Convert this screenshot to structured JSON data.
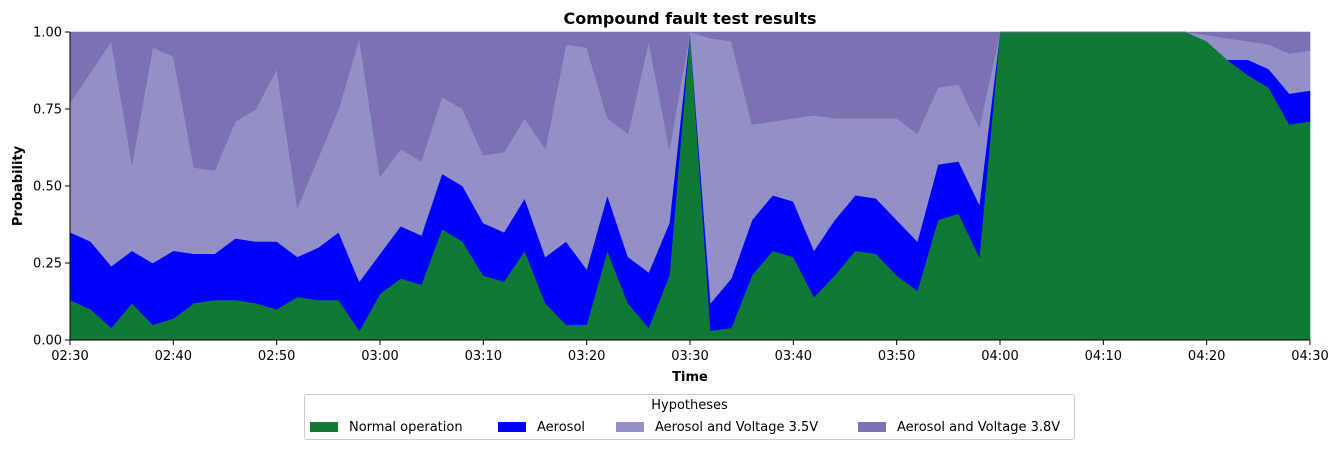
{
  "chart_data": {
    "type": "area",
    "stacked": true,
    "title": "Compound fault test results",
    "xlabel": "Time",
    "ylabel": "Probability",
    "ylim": [
      0,
      1
    ],
    "yticks": [
      "0.00",
      "0.25",
      "0.50",
      "0.75",
      "1.00"
    ],
    "xticks": [
      "02:30",
      "02:40",
      "02:50",
      "03:00",
      "03:10",
      "03:20",
      "03:30",
      "03:40",
      "03:50",
      "04:00",
      "04:10",
      "04:20",
      "04:30"
    ],
    "legend_title": "Hypotheses",
    "legend_position": "bottom-center",
    "x": [
      "02:30",
      "02:32",
      "02:34",
      "02:36",
      "02:38",
      "02:40",
      "02:42",
      "02:44",
      "02:46",
      "02:48",
      "02:50",
      "02:52",
      "02:54",
      "02:56",
      "02:58",
      "03:00",
      "03:02",
      "03:04",
      "03:06",
      "03:08",
      "03:10",
      "03:12",
      "03:14",
      "03:16",
      "03:18",
      "03:20",
      "03:22",
      "03:24",
      "03:26",
      "03:28",
      "03:30",
      "03:32",
      "03:34",
      "03:36",
      "03:38",
      "03:40",
      "03:42",
      "03:44",
      "03:46",
      "03:48",
      "03:50",
      "03:52",
      "03:54",
      "03:56",
      "03:58",
      "04:00",
      "04:02",
      "04:04",
      "04:06",
      "04:08",
      "04:10",
      "04:12",
      "04:14",
      "04:16",
      "04:18",
      "04:20",
      "04:22",
      "04:24",
      "04:26",
      "04:28",
      "04:30"
    ],
    "series": [
      {
        "name": "Normal operation",
        "color": "#0e7a36",
        "values": [
          0.13,
          0.1,
          0.04,
          0.12,
          0.05,
          0.07,
          0.12,
          0.13,
          0.13,
          0.12,
          0.1,
          0.14,
          0.13,
          0.13,
          0.03,
          0.15,
          0.2,
          0.18,
          0.36,
          0.32,
          0.21,
          0.19,
          0.29,
          0.12,
          0.05,
          0.05,
          0.29,
          0.12,
          0.04,
          0.21,
          1.0,
          0.03,
          0.04,
          0.21,
          0.29,
          0.27,
          0.14,
          0.21,
          0.29,
          0.28,
          0.21,
          0.16,
          0.39,
          0.41,
          0.27,
          1.0,
          1.0,
          1.0,
          1.0,
          1.0,
          1.0,
          1.0,
          1.0,
          1.0,
          1.0,
          0.97,
          0.91,
          0.86,
          0.82,
          0.7,
          0.71
        ]
      },
      {
        "name": "Aerosol",
        "color": "#0000ff",
        "values": [
          0.22,
          0.22,
          0.2,
          0.17,
          0.2,
          0.22,
          0.16,
          0.15,
          0.2,
          0.2,
          0.22,
          0.13,
          0.17,
          0.22,
          0.16,
          0.13,
          0.17,
          0.16,
          0.18,
          0.18,
          0.17,
          0.16,
          0.17,
          0.15,
          0.27,
          0.18,
          0.18,
          0.15,
          0.18,
          0.17,
          0.0,
          0.09,
          0.16,
          0.18,
          0.18,
          0.18,
          0.15,
          0.18,
          0.18,
          0.18,
          0.18,
          0.16,
          0.18,
          0.17,
          0.17,
          0.0,
          0.0,
          0.0,
          0.0,
          0.0,
          0.0,
          0.0,
          0.0,
          0.0,
          0.0,
          0.0,
          0.0,
          0.05,
          0.06,
          0.1,
          0.1
        ]
      },
      {
        "name": "Aerosol and Voltage 3.5V",
        "color": "#9290c6",
        "values": [
          0.42,
          0.55,
          0.73,
          0.28,
          0.7,
          0.63,
          0.28,
          0.27,
          0.38,
          0.43,
          0.56,
          0.16,
          0.29,
          0.4,
          0.79,
          0.25,
          0.25,
          0.24,
          0.25,
          0.25,
          0.22,
          0.26,
          0.26,
          0.35,
          0.64,
          0.72,
          0.25,
          0.4,
          0.75,
          0.24,
          0.0,
          0.86,
          0.77,
          0.31,
          0.24,
          0.27,
          0.44,
          0.33,
          0.25,
          0.26,
          0.33,
          0.35,
          0.25,
          0.25,
          0.25,
          0.0,
          0.0,
          0.0,
          0.0,
          0.0,
          0.0,
          0.0,
          0.0,
          0.0,
          0.0,
          0.02,
          0.07,
          0.06,
          0.08,
          0.13,
          0.13
        ]
      },
      {
        "name": "Aerosol and Voltage 3.8V",
        "color": "#7b71b3",
        "values": [
          0.23,
          0.13,
          0.03,
          0.43,
          0.05,
          0.08,
          0.44,
          0.45,
          0.29,
          0.25,
          0.12,
          0.57,
          0.41,
          0.25,
          0.02,
          0.47,
          0.38,
          0.42,
          0.21,
          0.25,
          0.4,
          0.39,
          0.28,
          0.38,
          0.04,
          0.05,
          0.28,
          0.33,
          0.03,
          0.38,
          0.0,
          0.02,
          0.03,
          0.3,
          0.29,
          0.28,
          0.27,
          0.28,
          0.28,
          0.28,
          0.28,
          0.33,
          0.18,
          0.17,
          0.31,
          0.0,
          0.0,
          0.0,
          0.0,
          0.0,
          0.0,
          0.0,
          0.0,
          0.0,
          0.0,
          0.01,
          0.02,
          0.03,
          0.04,
          0.07,
          0.06
        ]
      }
    ]
  }
}
